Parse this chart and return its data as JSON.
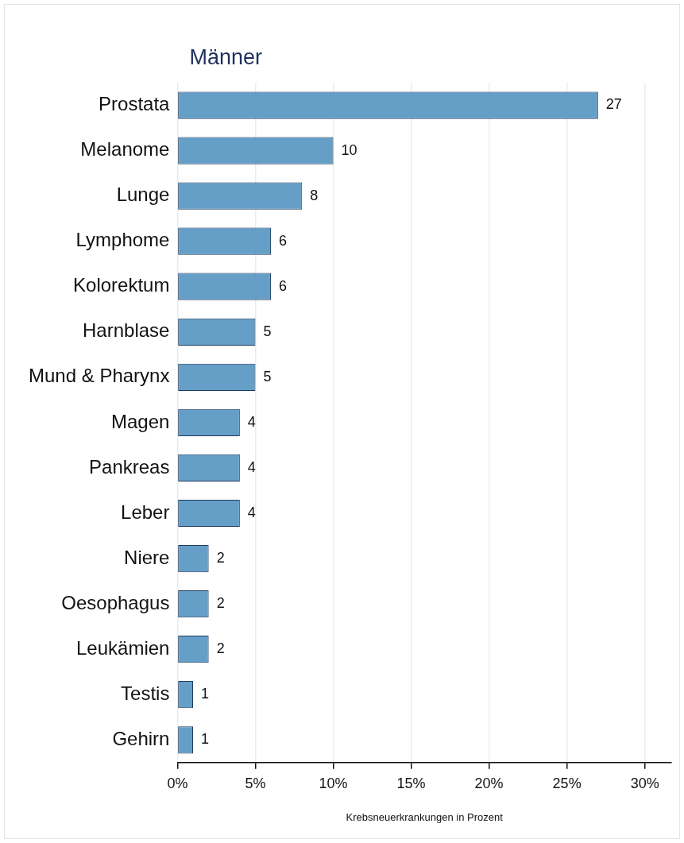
{
  "chart_data": {
    "type": "bar",
    "orientation": "horizontal",
    "title": "Männer",
    "xlabel": "Krebsneuerkrankungen in Prozent",
    "categories": [
      "Prostata",
      "Melanome",
      "Lunge",
      "Lymphome",
      "Kolorektum",
      "Harnblase",
      "Mund & Pharynx",
      "Magen",
      "Pankreas",
      "Leber",
      "Niere",
      "Oesophagus",
      "Leukämien",
      "Testis",
      "Gehirn"
    ],
    "values": [
      27,
      10,
      8,
      6,
      6,
      5,
      5,
      4,
      4,
      4,
      2,
      2,
      2,
      1,
      1
    ],
    "data_labels": true,
    "color": "#659ec7",
    "xlim": [
      0,
      31.7
    ],
    "xticks": [
      {
        "value": 0,
        "label": "0%"
      },
      {
        "value": 5,
        "label": "5%"
      },
      {
        "value": 10,
        "label": "10%"
      },
      {
        "value": 15,
        "label": "15%"
      },
      {
        "value": 20,
        "label": "20%"
      },
      {
        "value": 25,
        "label": "25%"
      },
      {
        "value": 30,
        "label": "30%"
      }
    ],
    "grid": "x",
    "legend": false
  }
}
